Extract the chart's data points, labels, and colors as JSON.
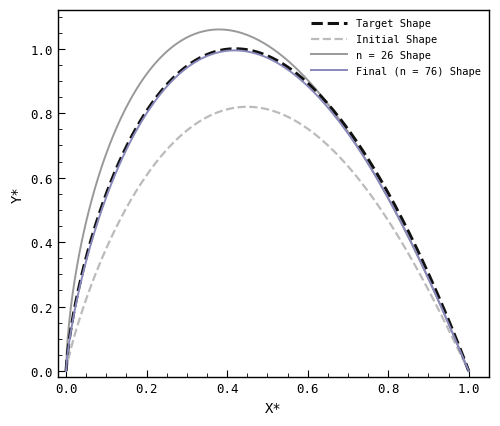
{
  "title": "",
  "xlabel": "X*",
  "ylabel": "Y*",
  "xlim": [
    -0.02,
    1.05
  ],
  "ylim": [
    -0.02,
    1.12
  ],
  "xticks": [
    0,
    0.2,
    0.4,
    0.6,
    0.8,
    1.0
  ],
  "yticks": [
    0,
    0.2,
    0.4,
    0.6,
    0.8,
    1.0
  ],
  "legend_entries": [
    "Target Shape",
    "Initial Shape",
    "n = 26 Shape",
    "Final (n = 76) Shape"
  ],
  "bg_color": "#ffffff",
  "curves": {
    "target": {
      "color": "#111111",
      "linestyle": "--",
      "linewidth": 2.2,
      "zorder": 4
    },
    "initial": {
      "color": "#bbbbbb",
      "linestyle": "--",
      "linewidth": 1.6,
      "zorder": 2
    },
    "n26": {
      "color": "#999999",
      "linestyle": "-",
      "linewidth": 1.4,
      "zorder": 3
    },
    "final": {
      "color": "#8888bb",
      "linestyle": "-",
      "linewidth": 1.4,
      "zorder": 5
    }
  }
}
